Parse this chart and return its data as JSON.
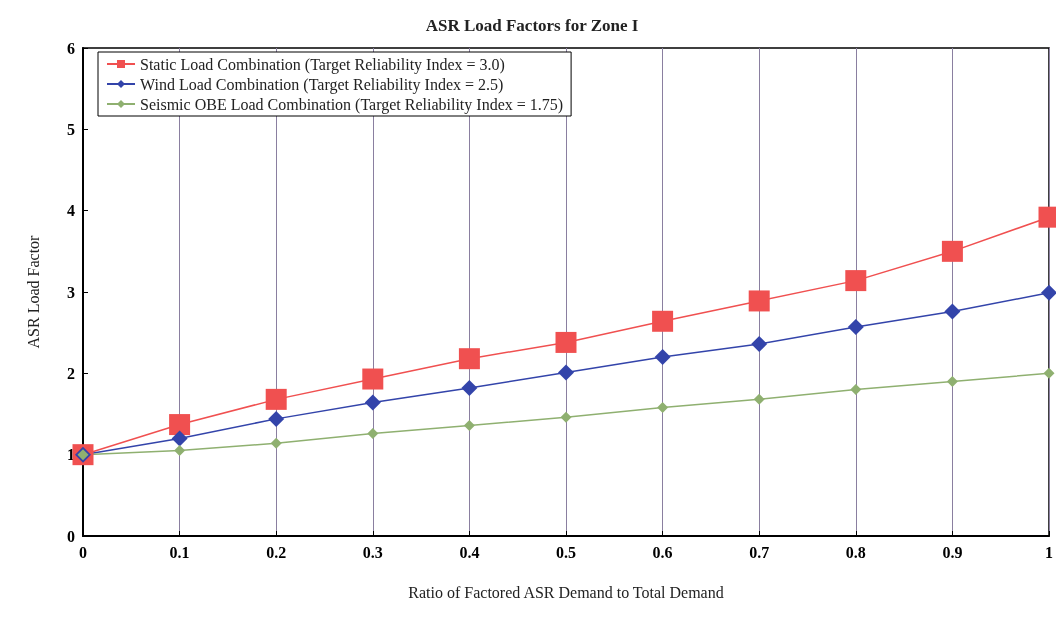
{
  "chart_data": {
    "type": "line",
    "title": "ASR Load Factors for Zone I",
    "xlabel": "Ratio of Factored ASR Demand to Total Demand",
    "ylabel": "ASR Load Factor",
    "x": [
      0,
      0.1,
      0.2,
      0.3,
      0.4,
      0.5,
      0.6,
      0.7,
      0.8,
      0.9,
      1
    ],
    "series": [
      {
        "name": "Static Load Combination (Target Reliability Index = 3.0)",
        "color": "#f05050",
        "marker": "square",
        "values": [
          1,
          1.37,
          1.68,
          1.93,
          2.18,
          2.38,
          2.64,
          2.89,
          3.14,
          3.5,
          3.92
        ]
      },
      {
        "name": "Wind Load Combination (Target Reliability Index = 2.5)",
        "color": "#3344aa",
        "marker": "diamond",
        "values": [
          1,
          1.2,
          1.44,
          1.64,
          1.82,
          2.01,
          2.2,
          2.36,
          2.57,
          2.76,
          2.99
        ]
      },
      {
        "name": "Seismic OBE Load Combination (Target Reliability Index = 1.75)",
        "color": "#8fb070",
        "marker": "diamond",
        "values": [
          1,
          1.05,
          1.14,
          1.26,
          1.36,
          1.46,
          1.58,
          1.68,
          1.8,
          1.9,
          2
        ]
      }
    ],
    "xlim": [
      0,
      1
    ],
    "xticks": [
      0,
      0.1,
      0.2,
      0.3,
      0.4,
      0.5,
      0.6,
      0.7,
      0.8,
      0.9,
      1
    ],
    "ylim": [
      0,
      6
    ],
    "yticks": [
      0,
      1,
      2,
      3,
      4,
      5,
      6
    ],
    "grid": "x",
    "legend": "top left",
    "line_style": "solid"
  }
}
